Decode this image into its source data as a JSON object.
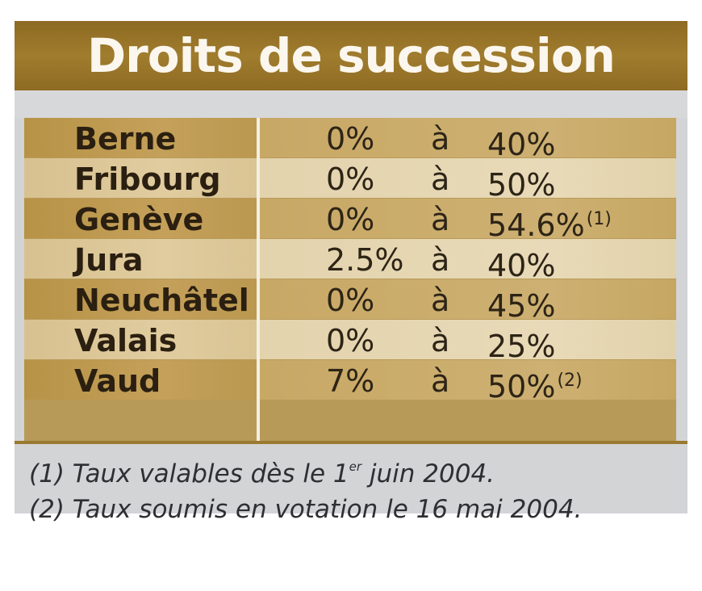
{
  "title": "Droits de succession",
  "separator": "à",
  "rows": [
    {
      "canton": "Berne",
      "from": "0%",
      "to": "40%",
      "note": ""
    },
    {
      "canton": "Fribourg",
      "from": "0%",
      "to": "50%",
      "note": ""
    },
    {
      "canton": "Genève",
      "from": "0%",
      "to": "54.6%",
      "note": "(1)"
    },
    {
      "canton": "Jura",
      "from": "2.5%",
      "to": "40%",
      "note": ""
    },
    {
      "canton": "Neuchâtel",
      "from": "0%",
      "to": "45%",
      "note": ""
    },
    {
      "canton": "Valais",
      "from": "0%",
      "to": "25%",
      "note": ""
    },
    {
      "canton": "Vaud",
      "from": "7%",
      "to": "50%",
      "note": "(2)"
    }
  ],
  "footnotes": {
    "note1_prefix": "(1) Taux valables dès le 1",
    "note1_sup": "er",
    "note1_suffix": " juin 2004.",
    "note2": "(2) Taux soumis en votation le 16 mai 2004."
  },
  "colors": {
    "title_bar": "#9a772a",
    "row_dark": "#c4a05a",
    "row_light": "#e0cc9f",
    "panel": "#d3d4d6"
  }
}
